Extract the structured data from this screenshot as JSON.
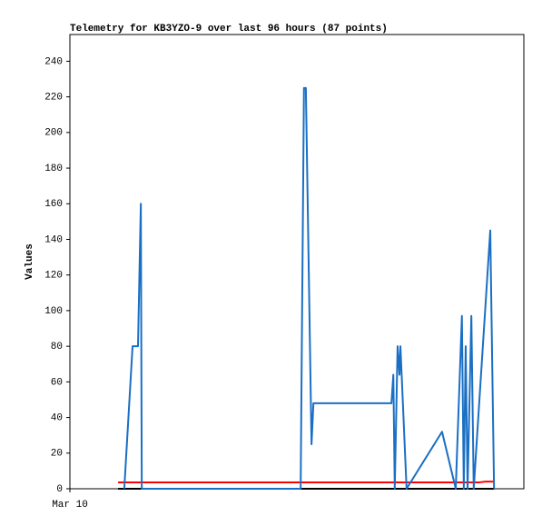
{
  "chart_data": {
    "type": "line",
    "title": "Telemetry for KB3YZO-9 over last 96 hours (87 points)",
    "y_label": "Values",
    "xlim": [
      0,
      96
    ],
    "xticks": [
      {
        "value": 0,
        "label": "Mar 10"
      }
    ],
    "ylim": [
      0,
      255
    ],
    "yticks": [
      0,
      20,
      40,
      60,
      80,
      100,
      120,
      140,
      160,
      180,
      200,
      220,
      240
    ],
    "grid": false,
    "series": [
      {
        "color": "#000000",
        "x": [
          10.2,
          89.7
        ],
        "values": [
          0,
          0
        ]
      },
      {
        "color": "#ff0000",
        "x": [
          10.2,
          86.6,
          87.9,
          89.7
        ],
        "values": [
          3.6,
          3.6,
          4,
          4
        ]
      },
      {
        "color": "#1a6fc4",
        "x": [
          11.5,
          13.25,
          14.4,
          15.0,
          15.2,
          48.8,
          49.5,
          49.9,
          51.1,
          51.5,
          68.0,
          68.4,
          68.7,
          69.3,
          69.7,
          69.9,
          71.2,
          78.7,
          81.6,
          82.9,
          83.3,
          83.7,
          84.1,
          84.9,
          85.4,
          88.9,
          89.7
        ],
        "values": [
          0,
          80,
          80,
          160,
          0,
          0,
          225,
          225,
          25,
          48,
          48,
          64,
          0,
          80,
          64,
          80,
          0,
          32,
          0,
          97,
          0,
          80,
          0,
          97,
          0,
          145,
          0
        ]
      }
    ]
  }
}
